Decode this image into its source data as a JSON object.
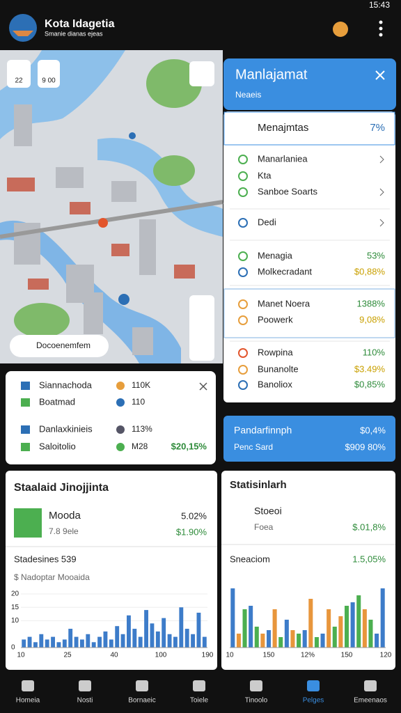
{
  "status_bar": {
    "time": "15:43"
  },
  "app_bar": {
    "title": "Kota Idagetia",
    "subtitle": "Smanie dianas ejeas"
  },
  "map": {
    "buttons": [
      "22",
      "9 00"
    ],
    "search": "Docoenemfem"
  },
  "panel": {
    "title": "Manlajamat",
    "subtitle": "Neaeis",
    "section": {
      "title": "Menajmtas",
      "value": "7%"
    },
    "items": [
      {
        "label": "Manarlaniea"
      },
      {
        "label": "Kta"
      },
      {
        "label": "Sanboe Soarts"
      },
      {
        "label": "Dedi"
      },
      {
        "label": "Menagia",
        "value": "53%"
      },
      {
        "label": "Molkecradant",
        "value": "$0,88%"
      },
      {
        "label": "Manet Noera",
        "value": "1388%"
      },
      {
        "label": "Poowerk",
        "value": "9,08%"
      },
      {
        "label": "Rowpina",
        "value": "110%"
      },
      {
        "label": "Bunanolte",
        "value": "$3.49%"
      },
      {
        "label": "Banoliox",
        "value": "$0,85%"
      }
    ]
  },
  "legend": {
    "items": [
      {
        "label": "Siannachoda",
        "value": "110K"
      },
      {
        "label": "Boatmad",
        "value": "110"
      },
      {
        "label": "Danlaxkinieis",
        "value": "113%"
      },
      {
        "label": "Saloitolio",
        "value": "M28",
        "extra": "$20,15%"
      }
    ]
  },
  "summary_card": {
    "title": "Pandarfinnph",
    "value": "$0,4%",
    "subtitle": "Penc Sard",
    "subvalue": "$909 80%"
  },
  "left_card": {
    "title": "Staalaid Jinojjinta",
    "item": {
      "label": "Mooda",
      "sublabel": "7.8 9ele",
      "value": "5.02%",
      "subvalue": "$1.90%"
    },
    "chart": {
      "type": "bar",
      "title": "Stadesines 539",
      "subtitle": "$ Nadoptar Mooaida",
      "ylim": [
        0,
        20
      ],
      "yticks": [
        0,
        10,
        15,
        20
      ],
      "xlabels": [
        "10",
        "25",
        "40",
        "100",
        "190"
      ],
      "values": [
        3,
        4,
        2,
        5,
        3,
        4,
        2,
        3,
        7,
        4,
        3,
        5,
        2,
        4,
        6,
        3,
        8,
        5,
        12,
        7,
        4,
        14,
        9,
        6,
        11,
        5,
        4,
        15,
        7,
        5,
        13,
        4
      ],
      "color": "#3d7cc9"
    }
  },
  "right_card": {
    "title": "Statisinlarh",
    "item": {
      "label": "Stoeoi",
      "sublabel": "Foea",
      "value": "$.01,8%"
    },
    "chart": {
      "type": "bar",
      "title": "Sneaciom",
      "value": "1.5,05%",
      "ylim": [
        0,
        20
      ],
      "xlabels": [
        "10",
        "150",
        "12%",
        "150",
        "120"
      ],
      "values": [
        17,
        4,
        11,
        12,
        6,
        4,
        5,
        11,
        3,
        8,
        5,
        4,
        5,
        14,
        3,
        4,
        11,
        6,
        9,
        12,
        13,
        15,
        11,
        8,
        4,
        17
      ],
      "colors": [
        "#3d7cc9",
        "#e8963c",
        "#4caf50",
        "#3d7cc9",
        "#4caf50",
        "#e8963c",
        "#3d7cc9",
        "#e8963c",
        "#4caf50",
        "#3d7cc9",
        "#e8963c",
        "#4caf50",
        "#3d7cc9",
        "#e8963c",
        "#4caf50",
        "#3d7cc9",
        "#e8963c",
        "#4caf50",
        "#e8963c",
        "#4caf50",
        "#3d7cc9",
        "#4caf50",
        "#e8963c",
        "#4caf50",
        "#3d7cc9",
        "#3d7cc9"
      ]
    }
  },
  "nav": [
    "Homeia",
    "Nosti",
    "Bornaeic",
    "Toiele",
    "Tinoolo",
    "Pelges",
    "Emeenaos"
  ]
}
